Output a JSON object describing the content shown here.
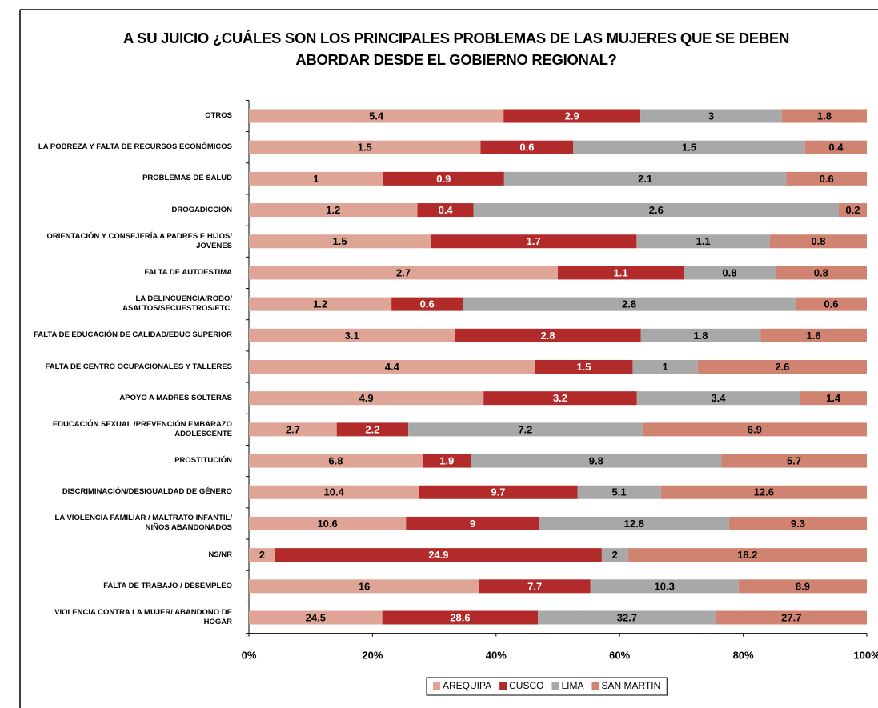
{
  "chart_data": {
    "type": "bar_stacked_percent_horizontal",
    "title": "A SU JUICIO ¿CUÁLES SON LOS PRINCIPALES PROBLEMAS DE LAS MUJERES QUE SE DEBEN ABORDAR DESDE EL GOBIERNO REGIONAL?",
    "categories": [
      "OTROS",
      "LA POBREZA Y FALTA DE RECURSOS ECONÓMICOS",
      "PROBLEMAS DE SALUD",
      "DROGADICCIÓN",
      "ORIENTACIÓN Y CONSEJERÍA A PADRES E HIJOS/ JÓVENES",
      "FALTA DE AUTOESTIMA",
      "LA DELINCUENCIA/ROBO/ ASALTOS/SECUESTROS/ETC.",
      "FALTA DE EDUCACIÓN DE CALIDAD/EDUC SUPERIOR",
      "FALTA DE CENTRO OCUPACIONALES Y TALLERES",
      "APOYO A MADRES SOLTERAS",
      "EDUCACIÓN SEXUAL /PREVENCIÓN EMBARAZO ADOLESCENTE",
      "PROSTITUCIÓN",
      "DISCRIMINACIÓN/DESIGUALDAD DE GÉNERO",
      "LA VIOLENCIA FAMILIAR / MALTRATO INFANTIL/ NIÑOS ABANDONADOS",
      "NS/NR",
      "FALTA DE TRABAJO / DESEMPLEO",
      "VIOLENCIA CONTRA LA MUJER/ ABANDONO DE HOGAR"
    ],
    "series": [
      {
        "name": "AREQUIPA",
        "color": "#dea597",
        "values": [
          5.4,
          1.5,
          1,
          1.2,
          1.5,
          2.7,
          1.2,
          3.1,
          4.4,
          4.9,
          2.7,
          6.8,
          10.4,
          10.6,
          2,
          16,
          24.5
        ]
      },
      {
        "name": "CUSCO",
        "color": "#b22a2a",
        "values": [
          2.9,
          0.6,
          0.9,
          0.4,
          1.7,
          1.1,
          0.6,
          2.8,
          1.5,
          3.2,
          2.2,
          1.9,
          9.7,
          9,
          24.9,
          7.7,
          28.6
        ]
      },
      {
        "name": "LIMA",
        "color": "#a8a8a8",
        "values": [
          3,
          1.5,
          2.1,
          2.6,
          1.1,
          0.8,
          2.8,
          1.8,
          1,
          3.4,
          7.2,
          9.8,
          5.1,
          12.8,
          2,
          10.3,
          32.7
        ]
      },
      {
        "name": "SAN MARTIN",
        "color": "#d08370",
        "values": [
          1.8,
          0.4,
          0.6,
          0.2,
          0.8,
          0.8,
          0.6,
          1.6,
          2.6,
          1.4,
          6.9,
          5.7,
          12.6,
          9.3,
          18.2,
          8.9,
          27.7
        ]
      }
    ],
    "xlim": [
      0,
      100
    ],
    "xticks": [
      {
        "value": 0,
        "label": "0%"
      },
      {
        "value": 20,
        "label": "20%"
      },
      {
        "value": 40,
        "label": "40%"
      },
      {
        "value": 60,
        "label": "60%"
      },
      {
        "value": 80,
        "label": "80%"
      },
      {
        "value": 100,
        "label": "100%"
      }
    ],
    "legend": "bottom"
  }
}
